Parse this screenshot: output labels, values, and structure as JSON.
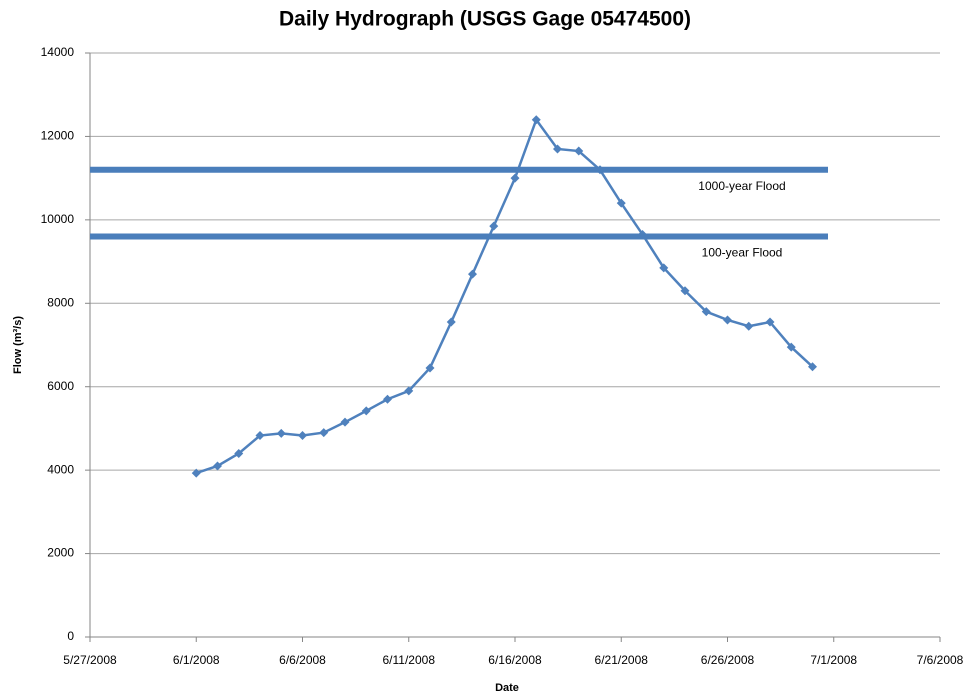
{
  "chart_data": {
    "type": "line",
    "title": "Daily Hydrograph (USGS Gage 05474500)",
    "x_label": "Date",
    "y_label": "Flow (m³/s)",
    "x": [
      "6/1/2008",
      "6/2/2008",
      "6/3/2008",
      "6/4/2008",
      "6/5/2008",
      "6/6/2008",
      "6/7/2008",
      "6/8/2008",
      "6/9/2008",
      "6/10/2008",
      "6/11/2008",
      "6/12/2008",
      "6/13/2008",
      "6/14/2008",
      "6/15/2008",
      "6/16/2008",
      "6/17/2008",
      "6/18/2008",
      "6/19/2008",
      "6/20/2008",
      "6/21/2008",
      "6/22/2008",
      "6/23/2008",
      "6/24/2008",
      "6/25/2008",
      "6/26/2008",
      "6/27/2008",
      "6/28/2008",
      "6/29/2008",
      "6/30/2008"
    ],
    "series": [
      {
        "name": "Flow",
        "color": "#4f81bd",
        "values": [
          3930,
          4100,
          4400,
          4830,
          4880,
          4830,
          4900,
          5150,
          5420,
          5700,
          5900,
          6450,
          7550,
          8700,
          9850,
          11000,
          12400,
          11700,
          11650,
          11200,
          10400,
          9650,
          8850,
          8300,
          7800,
          7600,
          7450,
          7550,
          6950,
          6480
        ]
      }
    ],
    "reference_lines": [
      {
        "label": "1000-year Flood",
        "value": 11200,
        "color": "#4a7ebb"
      },
      {
        "label": "100-year Flood",
        "value": 9600,
        "color": "#4a7ebb"
      }
    ],
    "xlim": [
      "5/27/2008",
      "7/6/2008"
    ],
    "xticks": [
      "5/27/2008",
      "6/1/2008",
      "6/6/2008",
      "6/11/2008",
      "6/16/2008",
      "6/21/2008",
      "6/26/2008",
      "7/1/2008",
      "7/6/2008"
    ],
    "ylim": [
      0,
      14000
    ],
    "yticks": [
      0,
      2000,
      4000,
      6000,
      8000,
      10000,
      12000,
      14000
    ],
    "grid": true,
    "legend": false
  }
}
